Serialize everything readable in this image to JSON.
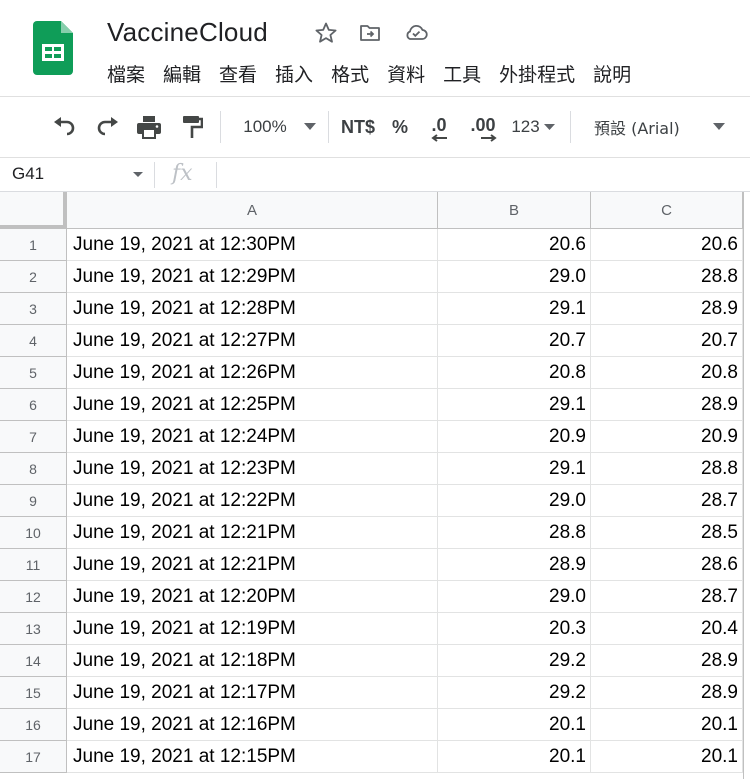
{
  "app": {
    "doc_title": "VaccineCloud",
    "brand_color": "#0f9d58"
  },
  "menu": [
    "檔案",
    "編輯",
    "查看",
    "插入",
    "格式",
    "資料",
    "工具",
    "外掛程式",
    "說明"
  ],
  "toolbar": {
    "zoom": "100%",
    "currency": "NT$",
    "percent": "%",
    "decrease_decimal": ".0",
    "increase_decimal": ".00",
    "more_formats": "123",
    "font": "預設 (Arial)"
  },
  "formula_bar": {
    "name_box": "G41",
    "fx": "fx",
    "content": ""
  },
  "columns": [
    "A",
    "B",
    "C"
  ],
  "rows": [
    {
      "n": "1",
      "a": "June 19, 2021 at 12:30PM",
      "b": "20.6",
      "c": "20.6"
    },
    {
      "n": "2",
      "a": "June 19, 2021 at 12:29PM",
      "b": "29.0",
      "c": "28.8"
    },
    {
      "n": "3",
      "a": "June 19, 2021 at 12:28PM",
      "b": "29.1",
      "c": "28.9"
    },
    {
      "n": "4",
      "a": "June 19, 2021 at 12:27PM",
      "b": "20.7",
      "c": "20.7"
    },
    {
      "n": "5",
      "a": "June 19, 2021 at 12:26PM",
      "b": "20.8",
      "c": "20.8"
    },
    {
      "n": "6",
      "a": "June 19, 2021 at 12:25PM",
      "b": "29.1",
      "c": "28.9"
    },
    {
      "n": "7",
      "a": "June 19, 2021 at 12:24PM",
      "b": "20.9",
      "c": "20.9"
    },
    {
      "n": "8",
      "a": "June 19, 2021 at 12:23PM",
      "b": "29.1",
      "c": "28.8"
    },
    {
      "n": "9",
      "a": "June 19, 2021 at 12:22PM",
      "b": "29.0",
      "c": "28.7"
    },
    {
      "n": "10",
      "a": "June 19, 2021 at 12:21PM",
      "b": "28.8",
      "c": "28.5"
    },
    {
      "n": "11",
      "a": "June 19, 2021 at 12:21PM",
      "b": "28.9",
      "c": "28.6"
    },
    {
      "n": "12",
      "a": "June 19, 2021 at 12:20PM",
      "b": "29.0",
      "c": "28.7"
    },
    {
      "n": "13",
      "a": "June 19, 2021 at 12:19PM",
      "b": "20.3",
      "c": "20.4"
    },
    {
      "n": "14",
      "a": "June 19, 2021 at 12:18PM",
      "b": "29.2",
      "c": "28.9"
    },
    {
      "n": "15",
      "a": "June 19, 2021 at 12:17PM",
      "b": "29.2",
      "c": "28.9"
    },
    {
      "n": "16",
      "a": "June 19, 2021 at 12:16PM",
      "b": "20.1",
      "c": "20.1"
    },
    {
      "n": "17",
      "a": "June 19, 2021 at 12:15PM",
      "b": "20.1",
      "c": "20.1"
    }
  ]
}
